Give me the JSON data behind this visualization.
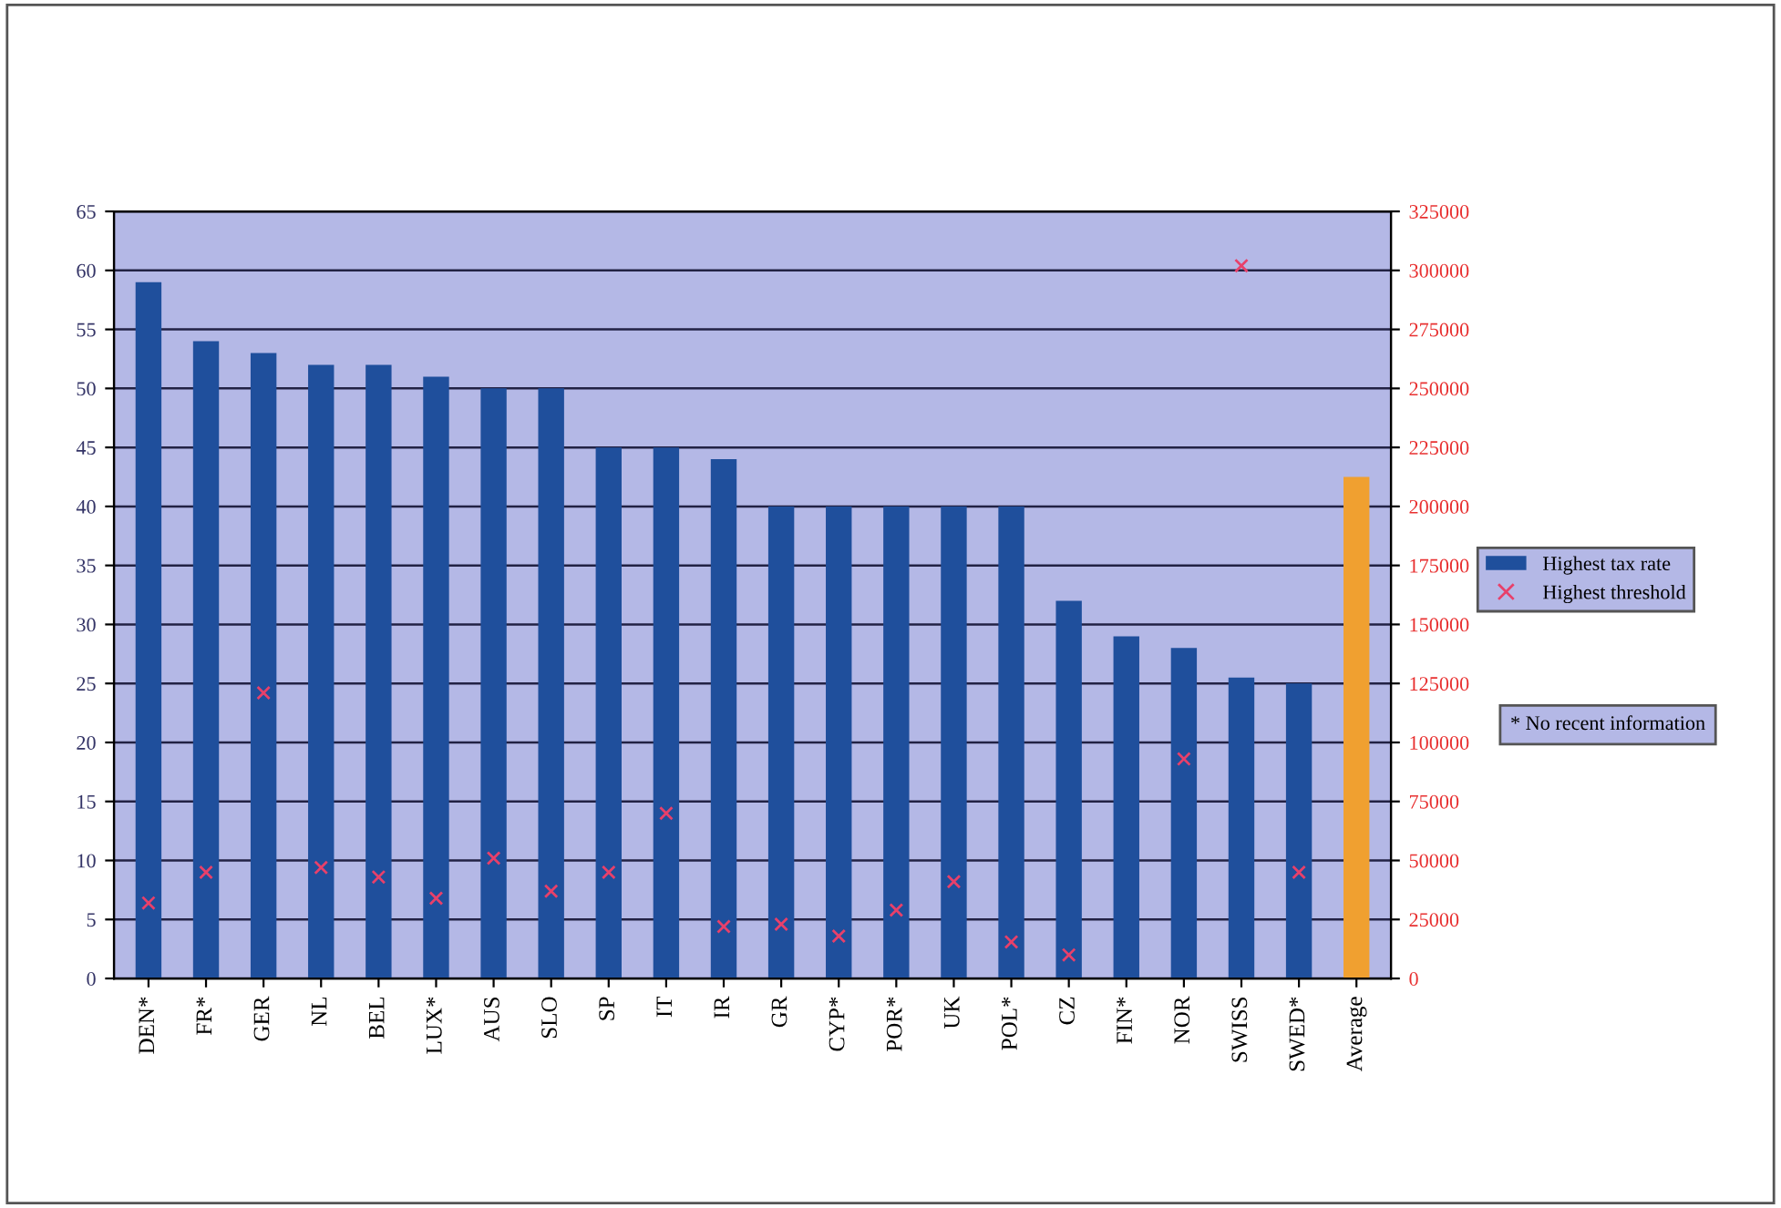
{
  "chart_data": {
    "type": "bar",
    "categories": [
      "DEN*",
      "FR*",
      "GER",
      "NL",
      "BEL",
      "LUX*",
      "AUS",
      "SLO",
      "SP",
      "IT",
      "IR",
      "GR",
      "CYP*",
      "POR*",
      "UK",
      "POL*",
      "CZ",
      "FIN*",
      "NOR",
      "SWISS",
      "SWED*",
      "Average"
    ],
    "series": [
      {
        "name": "Highest tax rate",
        "color": "#1f4f9c",
        "colors": [
          "#1f4f9c",
          "#1f4f9c",
          "#1f4f9c",
          "#1f4f9c",
          "#1f4f9c",
          "#1f4f9c",
          "#1f4f9c",
          "#1f4f9c",
          "#1f4f9c",
          "#1f4f9c",
          "#1f4f9c",
          "#1f4f9c",
          "#1f4f9c",
          "#1f4f9c",
          "#1f4f9c",
          "#1f4f9c",
          "#1f4f9c",
          "#1f4f9c",
          "#1f4f9c",
          "#1f4f9c",
          "#1f4f9c",
          "#f0a030"
        ],
        "values": [
          59,
          54,
          53,
          52,
          52,
          51,
          50,
          50,
          45,
          45,
          44,
          40,
          40,
          40,
          40,
          40,
          32,
          29,
          28,
          25.5,
          25,
          42.5
        ]
      },
      {
        "name": "Highest threshold",
        "type": "scatter",
        "axis": "y2",
        "color": "#e8406a",
        "marker": "cross",
        "values": [
          32000,
          45000,
          121000,
          47000,
          43000,
          34000,
          51000,
          37000,
          45000,
          70000,
          22000,
          23000,
          18000,
          29000,
          41000,
          15500,
          10000,
          null,
          93000,
          302000,
          45000,
          null
        ]
      }
    ],
    "ylim": [
      0,
      65
    ],
    "yticks": [
      0,
      5,
      10,
      15,
      20,
      25,
      30,
      35,
      40,
      45,
      50,
      55,
      60,
      65
    ],
    "y2lim": [
      0,
      325000
    ],
    "y2ticks": [
      0,
      25000,
      50000,
      75000,
      100000,
      125000,
      150000,
      175000,
      200000,
      225000,
      250000,
      275000,
      300000,
      325000
    ],
    "grid": "y",
    "legend": "right",
    "annotations": [
      "* No recent information"
    ]
  }
}
